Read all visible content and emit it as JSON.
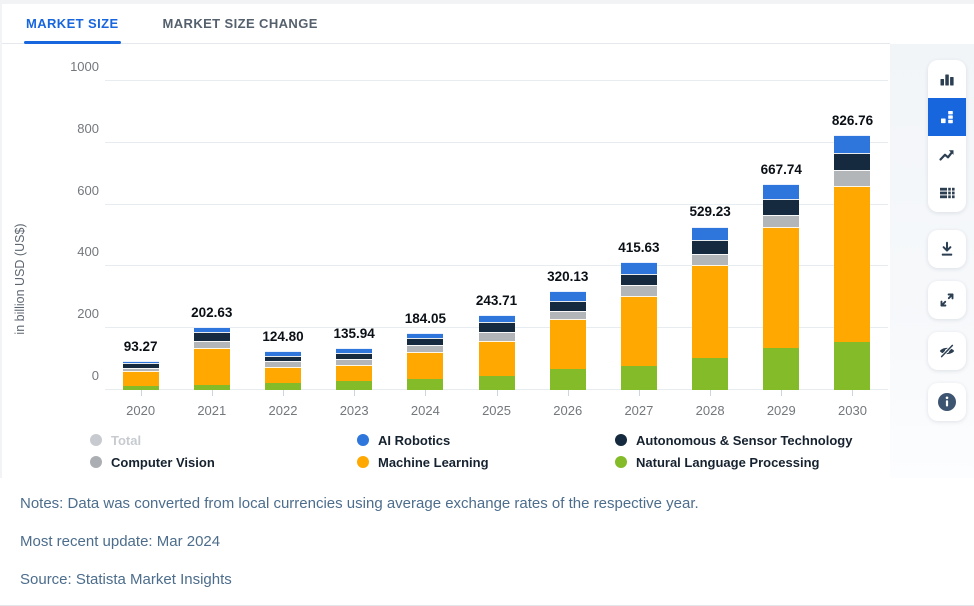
{
  "tabs": [
    {
      "label": "MARKET SIZE",
      "active": true
    },
    {
      "label": "MARKET SIZE CHANGE",
      "active": false
    }
  ],
  "chart_data": {
    "type": "bar",
    "stacked": true,
    "ylabel": "in billion USD (US$)",
    "ylim": [
      0,
      1000
    ],
    "yticks": [
      0,
      200,
      400,
      600,
      800,
      1000
    ],
    "grid": true,
    "categories": [
      "2020",
      "2021",
      "2022",
      "2023",
      "2024",
      "2025",
      "2026",
      "2027",
      "2028",
      "2029",
      "2030"
    ],
    "totals": [
      93.27,
      202.63,
      124.8,
      135.94,
      184.05,
      243.71,
      320.13,
      415.63,
      529.23,
      667.74,
      826.76
    ],
    "series": [
      {
        "name": "Natural Language Processing",
        "color": "#83BC28",
        "values": [
          12.9,
          16.0,
          22.0,
          28.0,
          36.0,
          46.0,
          68.5,
          79.0,
          102.0,
          135.0,
          156.0
        ]
      },
      {
        "name": "Machine Learning",
        "color": "#FFA802",
        "values": [
          48.1,
          120.6,
          53.3,
          52.9,
          86.5,
          113.7,
          160.6,
          226.6,
          304.2,
          391.2,
          504.3
        ]
      },
      {
        "name": "Computer Vision",
        "color": "#B3B6B9",
        "values": [
          8.8,
          21.5,
          19.5,
          21.0,
          23.0,
          29.5,
          27.5,
          34.0,
          35.0,
          41.0,
          52.5
        ]
      },
      {
        "name": "Autonomous & Sensor Technology",
        "color": "#152A3E",
        "values": [
          16.2,
          30.0,
          16.0,
          17.0,
          21.5,
          31.5,
          33.0,
          34.5,
          43.0,
          49.5,
          54.0
        ]
      },
      {
        "name": "AI Robotics",
        "color": "#2E76DB",
        "values": [
          7.3,
          14.5,
          14.0,
          17.0,
          17.0,
          23.0,
          30.5,
          41.5,
          45.0,
          51.0,
          60.0
        ]
      }
    ],
    "legend_position": "bottom",
    "legend": [
      {
        "label": "Total",
        "color": "#C7CBD0",
        "disabled": true
      },
      {
        "label": "Computer Vision",
        "color": "#ABAEB3",
        "disabled": false
      },
      {
        "label": "AI Robotics",
        "color": "#2E76DB",
        "disabled": false
      },
      {
        "label": "Machine Learning",
        "color": "#FFA802",
        "disabled": false
      },
      {
        "label": "Autonomous & Sensor Technology",
        "color": "#152A3E",
        "disabled": false
      },
      {
        "label": "Natural Language Processing",
        "color": "#83BC28",
        "disabled": false
      }
    ]
  },
  "toolbar": {
    "groups": [
      {
        "buttons": [
          {
            "icon": "column-chart",
            "selected": false
          },
          {
            "icon": "stacked-column-chart",
            "selected": true
          },
          {
            "icon": "line-chart",
            "selected": false
          },
          {
            "icon": "data-table",
            "selected": false
          }
        ]
      },
      {
        "buttons": [
          {
            "icon": "download",
            "selected": false
          }
        ]
      },
      {
        "buttons": [
          {
            "icon": "expand",
            "selected": false
          }
        ]
      },
      {
        "buttons": [
          {
            "icon": "hide-labels",
            "selected": false
          }
        ]
      },
      {
        "buttons": [
          {
            "icon": "info",
            "selected": false
          }
        ]
      }
    ]
  },
  "colors": {
    "accent": "#1766DE",
    "icon": "#2C3E52",
    "info_circle": "#3D5570"
  },
  "notes": {
    "notes_line": "Notes: Data was converted from local currencies using average exchange rates of the respective year.",
    "update_line": "Most recent update: Mar 2024",
    "source_line": "Source: Statista Market Insights"
  }
}
